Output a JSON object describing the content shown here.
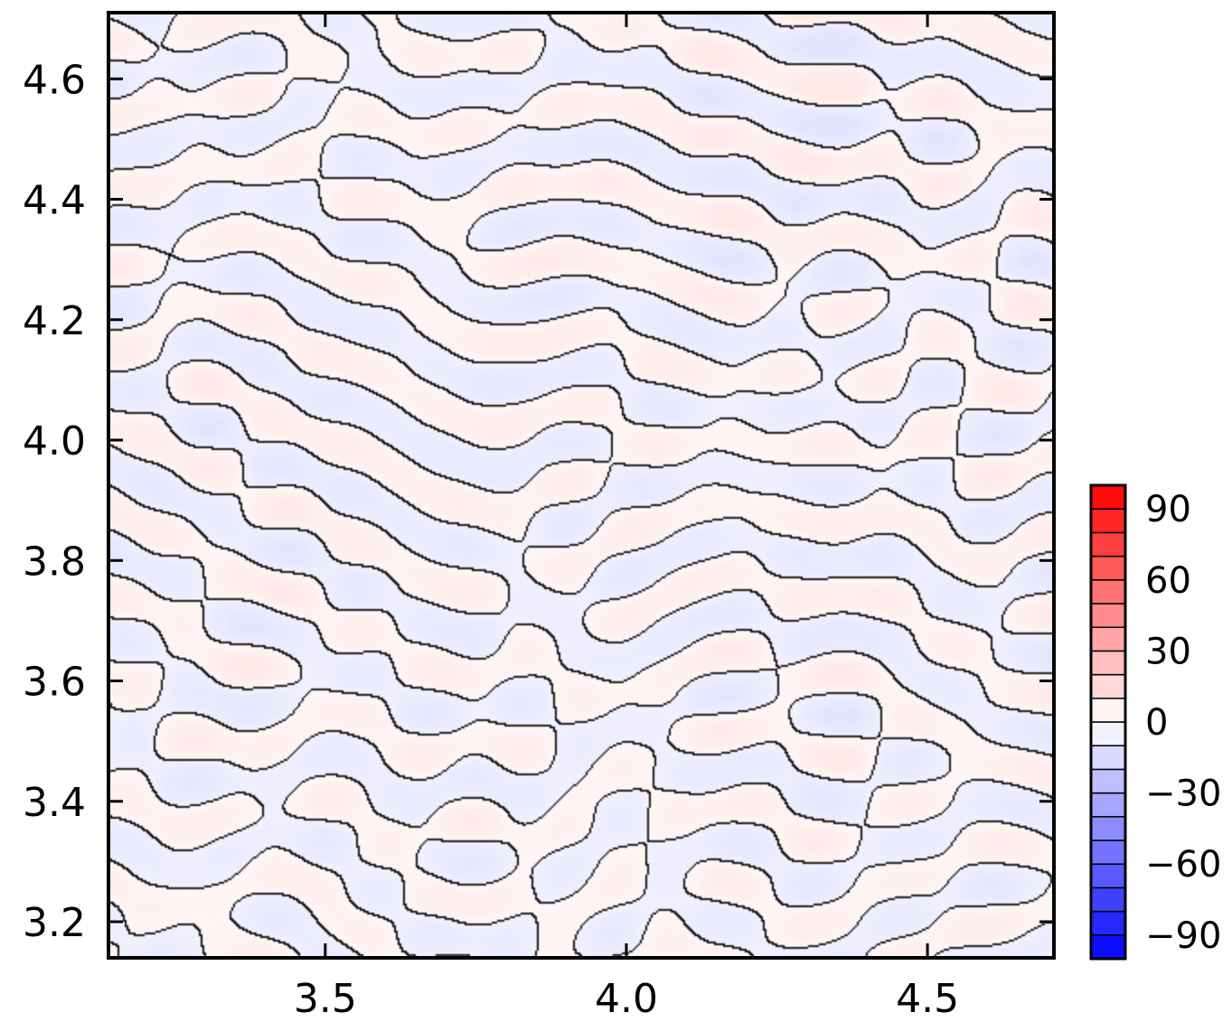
{
  "chart_data": {
    "type": "heatmap",
    "title": "",
    "xlabel": "",
    "ylabel": "",
    "xlim": [
      3.14,
      4.71
    ],
    "ylim": [
      3.14,
      4.71
    ],
    "x_ticks": [
      3.5,
      4.0,
      4.5
    ],
    "x_tick_labels": [
      "3.5",
      "4.0",
      "4.5"
    ],
    "y_ticks": [
      3.2,
      3.4,
      3.6,
      3.8,
      4.0,
      4.2,
      4.4,
      4.6
    ],
    "y_tick_labels": [
      "3.2",
      "3.4",
      "3.6",
      "3.8",
      "4.0",
      "4.2",
      "4.4",
      "4.6"
    ],
    "field_range": [
      -5,
      5
    ],
    "pattern": "labyrinthine stripes with black zero contour lines",
    "colorbar": {
      "range": [
        -100,
        100
      ],
      "levels": [
        -100,
        -90,
        -80,
        -70,
        -60,
        -50,
        -40,
        -30,
        -20,
        -10,
        0,
        10,
        20,
        30,
        40,
        50,
        60,
        70,
        80,
        90,
        100
      ],
      "ticks": [
        90,
        60,
        30,
        0,
        -30,
        -60,
        -90
      ],
      "tick_labels": [
        "90",
        "60",
        "30",
        "0",
        "−30",
        "−60",
        "−90"
      ],
      "colors": {
        "negative_max": "#0000ff",
        "zero": "#ffffff",
        "positive_max": "#ff0000"
      }
    },
    "grid": false,
    "contour_color": "#000000"
  }
}
